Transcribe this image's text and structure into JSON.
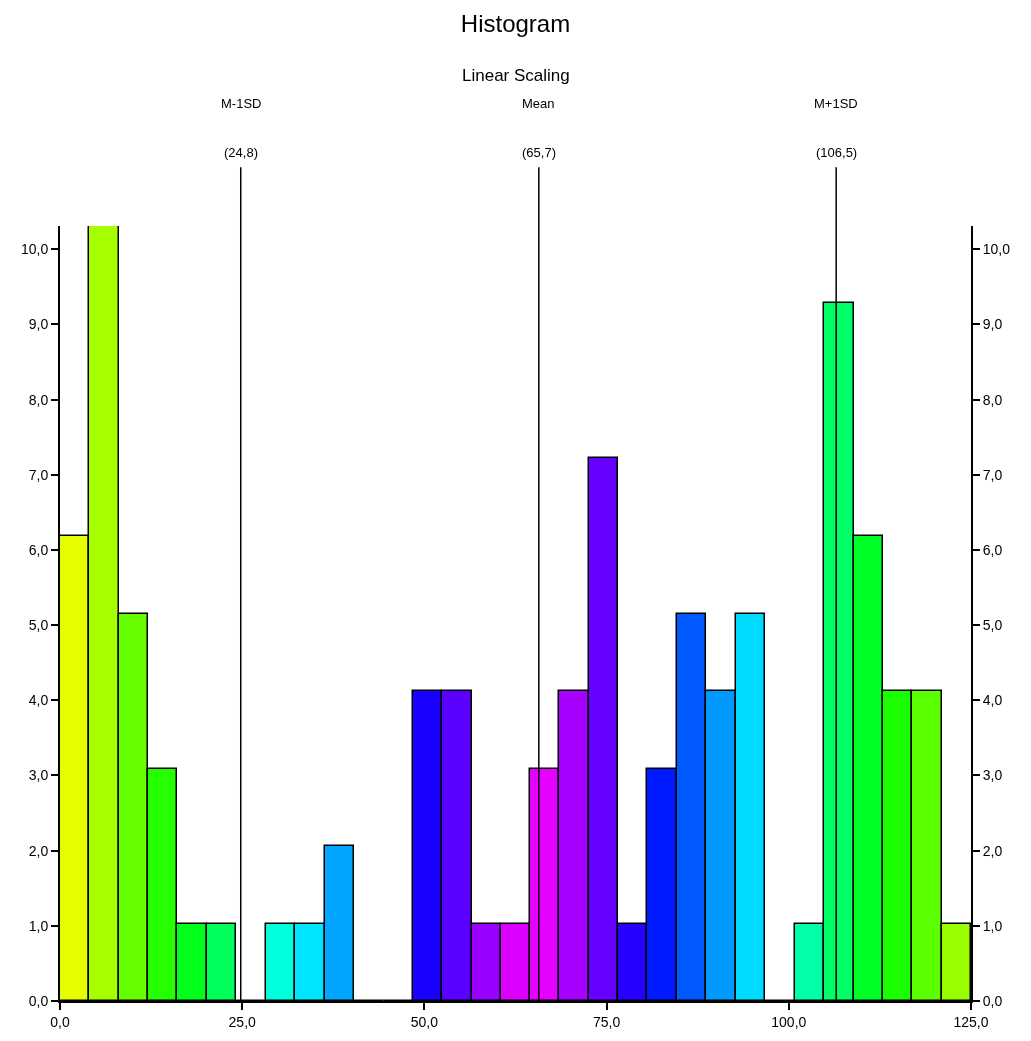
{
  "chart_data": {
    "type": "histogram",
    "title": "Histogram",
    "subtitle": "Linear Scaling",
    "bins": [
      0,
      4.0,
      8.1,
      12.1,
      16.1,
      20.2,
      24.2,
      28.2,
      32.3,
      36.3,
      40.3,
      44.4,
      48.4,
      52.4,
      56.5,
      60.5,
      64.5,
      68.5,
      72.6,
      76.6,
      80.6,
      84.7,
      88.7,
      92.7,
      96.8,
      100.8,
      104.8,
      108.9,
      112.9,
      116.9,
      121.0,
      125.0
    ],
    "values": [
      6.19,
      10.31,
      5.15,
      3.09,
      1.03,
      1.03,
      0,
      1.03,
      1.03,
      2.06,
      0,
      0,
      4.12,
      4.12,
      1.03,
      1.03,
      3.09,
      4.12,
      7.22,
      1.03,
      3.09,
      5.15,
      4.12,
      5.15,
      0,
      1.03,
      9.28,
      6.19,
      4.12,
      4.12,
      1.03
    ],
    "colors": [
      "#e5ff00",
      "#a6ff00",
      "#66ff00",
      "#26ff00",
      "#00ff1a",
      "#00ff5a",
      null,
      "#00ffdb",
      "#00e5ff",
      "#00a6ff",
      null,
      null,
      "#1a00ff",
      "#5a00ff",
      "#9900ff",
      "#db00ff",
      "#e500ff",
      "#a600ff",
      "#6600ff",
      "#2600ff",
      "#001aff",
      "#005aff",
      "#0099ff",
      "#00dbff",
      null,
      "#00ffa6",
      "#00ff66",
      "#00ff26",
      "#1aff00",
      "#5aff00",
      "#99ff00"
    ],
    "xlim": [
      0,
      125
    ],
    "xticks": [
      {
        "value": 0,
        "label": "0,0"
      },
      {
        "value": 25,
        "label": "25,0"
      },
      {
        "value": 50,
        "label": "50,0"
      },
      {
        "value": 75,
        "label": "75,0"
      },
      {
        "value": 100,
        "label": "100,0"
      },
      {
        "value": 125,
        "label": "125,0"
      }
    ],
    "ylim": [
      0,
      10.31
    ],
    "yticks": [
      {
        "value": 0,
        "label": "0,0"
      },
      {
        "value": 1,
        "label": "1,0"
      },
      {
        "value": 2,
        "label": "2,0"
      },
      {
        "value": 3,
        "label": "3,0"
      },
      {
        "value": 4,
        "label": "4,0"
      },
      {
        "value": 5,
        "label": "5,0"
      },
      {
        "value": 6,
        "label": "6,0"
      },
      {
        "value": 7,
        "label": "7,0"
      },
      {
        "value": 8,
        "label": "8,0"
      },
      {
        "value": 9,
        "label": "9,0"
      },
      {
        "value": 10,
        "label": "10,0"
      }
    ],
    "y2lim": [
      0,
      10.31
    ],
    "y2ticks": [
      {
        "value": 0,
        "label": "0,0"
      },
      {
        "value": 1,
        "label": "1,0"
      },
      {
        "value": 2,
        "label": "2,0"
      },
      {
        "value": 3,
        "label": "3,0"
      },
      {
        "value": 4,
        "label": "4,0"
      },
      {
        "value": 5,
        "label": "5,0"
      },
      {
        "value": 6,
        "label": "6,0"
      },
      {
        "value": 7,
        "label": "7,0"
      },
      {
        "value": 8,
        "label": "8,0"
      },
      {
        "value": 9,
        "label": "9,0"
      },
      {
        "value": 10,
        "label": "10,0"
      }
    ],
    "ref_lines": [
      {
        "axis": "x",
        "value": 24.8,
        "label": "M-1SD\n(24,8)",
        "color": "#000000"
      },
      {
        "axis": "x",
        "value": 65.7,
        "label": "Mean\n(65,7)",
        "color": "#000000"
      },
      {
        "axis": "x",
        "value": 106.5,
        "label": "M+1SD\n(106,5)",
        "color": "#000000"
      }
    ]
  }
}
